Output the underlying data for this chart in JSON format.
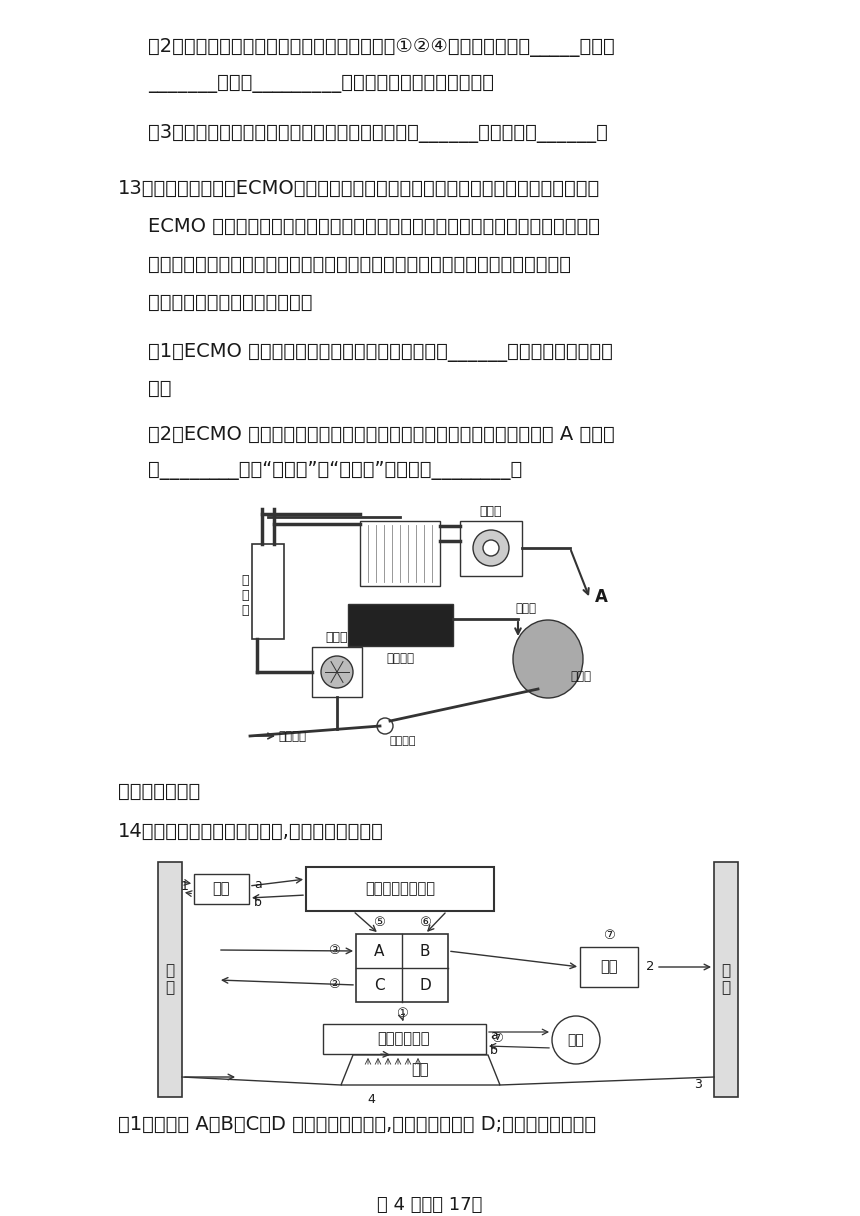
{
  "page_bg": "#ffffff",
  "text_color": "#1a1a1a",
  "line_color": "#333333",
  "figsize": [
    8.6,
    12.16
  ],
  "dpi": 100,
  "content": {
    "q2_text1": "（2）与人体细胞的代谢有直接关系的是：图中①②④分别代表人体的_____系统、",
    "q2_text2": "_______系统、_________系统和循环系统这四个系统；",
    "q3_text": "（3）通过肺进入血液中的物质最终随血液循环到达______，其作用是______。",
    "q13_intro": "13．新冠疫情期间，ECMO（体外肺膜氧合）技术的使用挤救了许多危重患者的生命。",
    "q13_body1": "ECMO 技术的原理是将体内的静脉血引出体外，经过氧合器交换气体后注入病人的",
    "q13_body2": "静脉或动脉，起到部分心肺替代作用，其主要设备包括氧合器、氧气泵、动力泵、",
    "q13_body3": "监测系统、医用物理升温仪等。",
    "q13_1_text1": "（1）ECMO 技术主要设备中的氧合器替代的是人体______（填器官名称）的功",
    "q13_1_text2": "能。",
    "q13_2_text1": "（2）ECMO 技术在挤救心脏和肺功能衰竭的病人生命时（如图），导管 A 端应连",
    "q13_2_text2": "接________（填“肺静脉”或“主动脉”）依据是________。",
    "sec3_title": "三、实验探究题",
    "q14_intro": "14．如图表示的部分生理过程,请分析回答问题。",
    "q14_q1_text": "（1）若图中 A、B、C、D 表示心脏的四个腔,其中壁最厚的是 D;在心房和心室之间",
    "page_footer": "第 4 页，公 17页"
  }
}
